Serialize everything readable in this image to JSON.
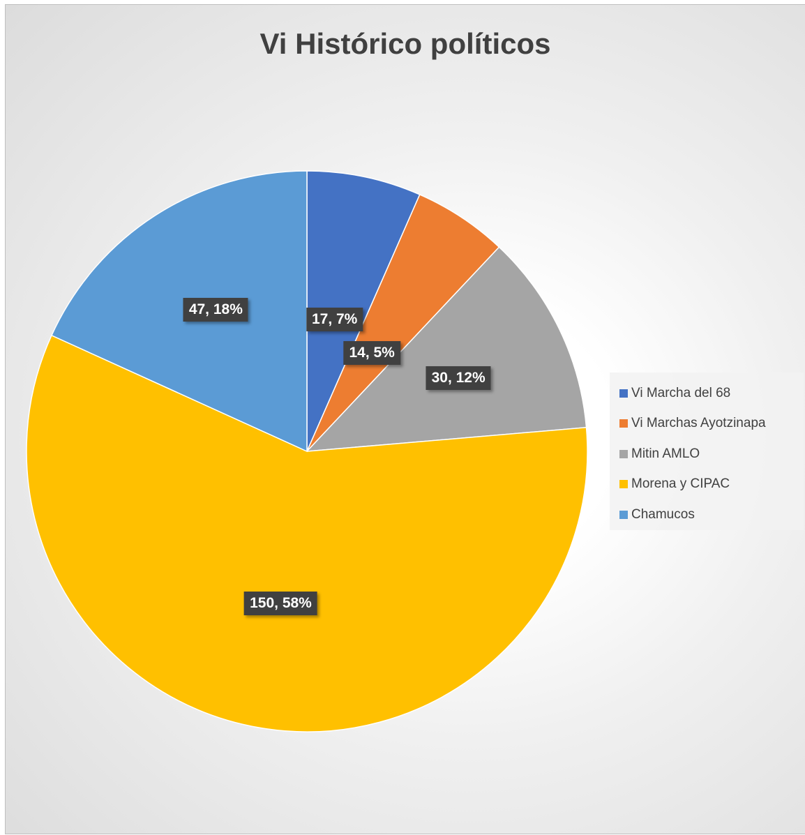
{
  "chart_data": {
    "type": "pie",
    "title": "Vi Histórico políticos",
    "categories": [
      "Vi Marcha del 68",
      "Vi Marchas Ayotzinapa",
      "Mitin AMLO",
      "Morena y CIPAC",
      "Chamucos"
    ],
    "values": [
      17,
      14,
      30,
      150,
      47
    ],
    "data_labels": [
      "17, 7%",
      "14, 5%",
      "30, 12%",
      "150, 58%",
      "47, 18%"
    ],
    "colors": [
      "#4472C4",
      "#ED7D31",
      "#A5A5A5",
      "#FFC000",
      "#5B9BD5"
    ],
    "legend_position": "right"
  }
}
